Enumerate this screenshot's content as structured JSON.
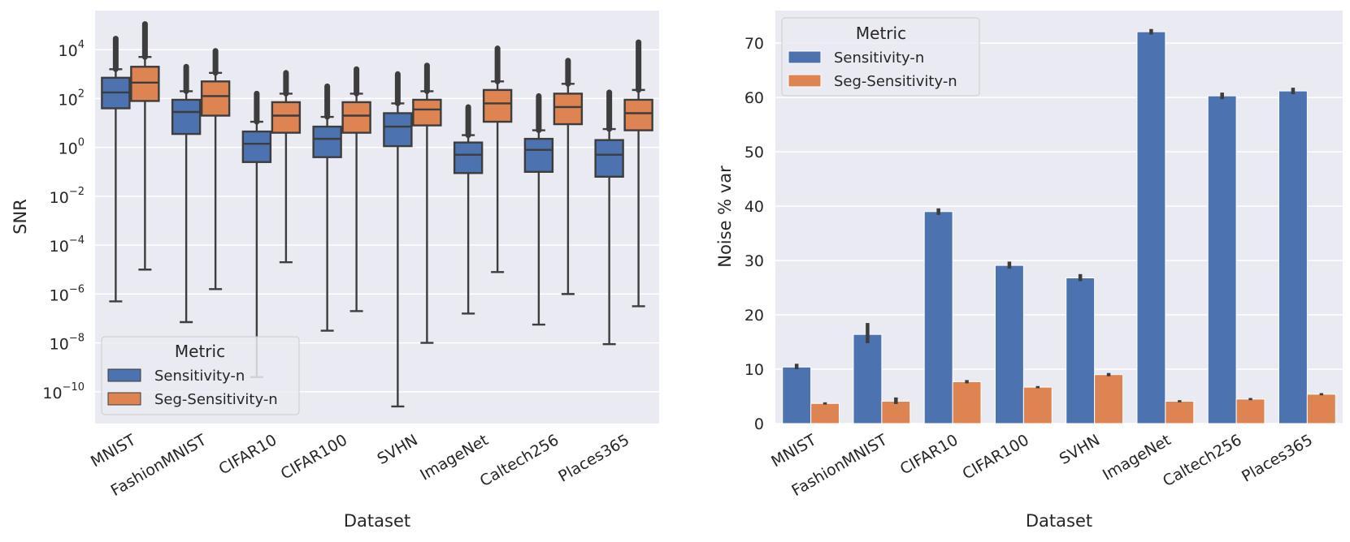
{
  "colors": {
    "panel_bg": "#eaeaf2",
    "grid": "#ffffff",
    "series1": "#4c72b0",
    "series2": "#dd8452",
    "edge": "#3d3d3d",
    "text": "#262626"
  },
  "chart_data": [
    {
      "type": "boxplot",
      "xlabel": "Dataset",
      "ylabel": "SNR",
      "yscale": "log",
      "ylim_log10": [
        -11.3,
        5.6
      ],
      "yticks": [
        {
          "base": "10",
          "exp": "4",
          "log10": 4
        },
        {
          "base": "10",
          "exp": "2",
          "log10": 2
        },
        {
          "base": "10",
          "exp": "0",
          "log10": 0
        },
        {
          "base": "10",
          "exp": "−2",
          "log10": -2
        },
        {
          "base": "10",
          "exp": "−4",
          "log10": -4
        },
        {
          "base": "10",
          "exp": "−6",
          "log10": -6
        },
        {
          "base": "10",
          "exp": "−8",
          "log10": -8
        },
        {
          "base": "10",
          "exp": "−10",
          "log10": -10
        }
      ],
      "categories": [
        "MNIST",
        "FashionMNIST",
        "CIFAR10",
        "CIFAR100",
        "SVHN",
        "ImageNet",
        "Caltech256",
        "Places365"
      ],
      "legend": {
        "title": "Metric",
        "position": "lower-left"
      },
      "series": [
        {
          "name": "Sensitivity-n",
          "stats_log10": [
            {
              "wlo": -6.3,
              "q1": 1.6,
              "med": 2.25,
              "q3": 2.85,
              "whi": 3.2,
              "fmax": 4.45
            },
            {
              "wlo": -7.15,
              "q1": 0.55,
              "med": 1.45,
              "q3": 1.95,
              "whi": 2.3,
              "fmax": 3.3
            },
            {
              "wlo": -9.4,
              "q1": -0.6,
              "med": 0.15,
              "q3": 0.65,
              "whi": 1.05,
              "fmax": 2.2
            },
            {
              "wlo": -7.5,
              "q1": -0.4,
              "med": 0.35,
              "q3": 0.85,
              "whi": 1.25,
              "fmax": 2.5
            },
            {
              "wlo": -10.6,
              "q1": 0.05,
              "med": 0.85,
              "q3": 1.4,
              "whi": 1.8,
              "fmax": 3.0
            },
            {
              "wlo": -6.8,
              "q1": -1.05,
              "med": -0.3,
              "q3": 0.2,
              "whi": 0.5,
              "fmax": 1.65
            },
            {
              "wlo": -7.25,
              "q1": -1.0,
              "med": -0.1,
              "q3": 0.35,
              "whi": 0.7,
              "fmax": 2.1
            },
            {
              "wlo": -8.05,
              "q1": -1.2,
              "med": -0.3,
              "q3": 0.3,
              "whi": 0.75,
              "fmax": 2.25
            }
          ]
        },
        {
          "name": "Seg-Sensitivity-n",
          "stats_log10": [
            {
              "wlo": -5.0,
              "q1": 1.9,
              "med": 2.65,
              "q3": 3.3,
              "whi": 3.7,
              "fmax": 5.05
            },
            {
              "wlo": -5.8,
              "q1": 1.3,
              "med": 2.1,
              "q3": 2.7,
              "whi": 3.05,
              "fmax": 3.95
            },
            {
              "wlo": -4.7,
              "q1": 0.6,
              "med": 1.3,
              "q3": 1.85,
              "whi": 2.2,
              "fmax": 3.05
            },
            {
              "wlo": -6.7,
              "q1": 0.6,
              "med": 1.3,
              "q3": 1.85,
              "whi": 2.2,
              "fmax": 3.2
            },
            {
              "wlo": -8.0,
              "q1": 0.9,
              "med": 1.55,
              "q3": 1.95,
              "whi": 2.3,
              "fmax": 3.35
            },
            {
              "wlo": -5.1,
              "q1": 1.05,
              "med": 1.8,
              "q3": 2.35,
              "whi": 2.7,
              "fmax": 4.05
            },
            {
              "wlo": -6.0,
              "q1": 0.95,
              "med": 1.65,
              "q3": 2.2,
              "whi": 2.6,
              "fmax": 3.55
            },
            {
              "wlo": -6.5,
              "q1": 0.7,
              "med": 1.4,
              "q3": 1.95,
              "whi": 2.35,
              "fmax": 4.3
            }
          ]
        }
      ]
    },
    {
      "type": "bar",
      "xlabel": "Dataset",
      "ylabel": "Noise % var",
      "ylim": [
        0,
        76
      ],
      "yticks": [
        0,
        10,
        20,
        30,
        40,
        50,
        60,
        70
      ],
      "categories": [
        "MNIST",
        "FashionMNIST",
        "CIFAR10",
        "CIFAR100",
        "SVHN",
        "ImageNet",
        "Caltech256",
        "Places365"
      ],
      "legend": {
        "title": "Metric",
        "position": "top-left"
      },
      "series": [
        {
          "name": "Sensitivity-n",
          "values": [
            10.4,
            16.4,
            39.0,
            29.1,
            26.8,
            72.1,
            60.3,
            61.2
          ],
          "ci": [
            [
              10.0,
              11.0
            ],
            [
              14.8,
              18.5
            ],
            [
              38.4,
              39.6
            ],
            [
              28.5,
              29.8
            ],
            [
              26.2,
              27.5
            ],
            [
              71.6,
              72.6
            ],
            [
              59.7,
              60.9
            ],
            [
              60.6,
              61.8
            ]
          ]
        },
        {
          "name": "Seg-Sensitivity-n",
          "values": [
            3.7,
            4.1,
            7.7,
            6.7,
            9.0,
            4.1,
            4.5,
            5.4
          ],
          "ci": [
            [
              3.5,
              3.9
            ],
            [
              3.6,
              4.8
            ],
            [
              7.4,
              8.0
            ],
            [
              6.5,
              6.9
            ],
            [
              8.7,
              9.3
            ],
            [
              3.9,
              4.3
            ],
            [
              4.3,
              4.7
            ],
            [
              5.2,
              5.6
            ]
          ]
        }
      ]
    }
  ]
}
